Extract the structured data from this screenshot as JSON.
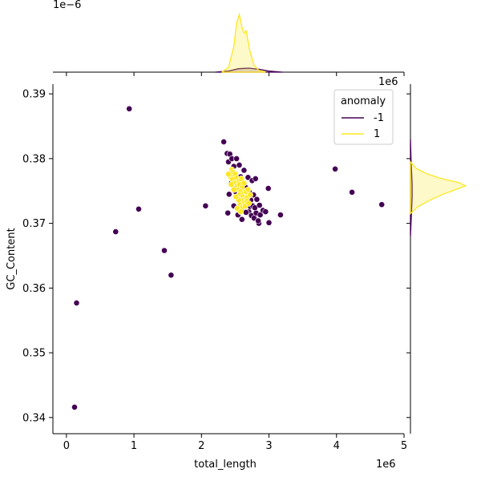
{
  "chart_data": {
    "type": "scatter",
    "title": "",
    "xlabel": "total_length",
    "ylabel": "GC_Content",
    "x_offset_label": "1e6",
    "y_offset_label_right": "1e6",
    "top_offset_label": "1e−6",
    "xlim": [
      -0.2,
      5.0
    ],
    "ylim": [
      0.3375,
      0.3915
    ],
    "xticks": [
      "0",
      "1",
      "2",
      "3",
      "4",
      "5"
    ],
    "yticks": [
      "0.34",
      "0.35",
      "0.36",
      "0.37",
      "0.38",
      "0.39"
    ],
    "grid": false,
    "legend": {
      "title": "anomaly",
      "placement": "top-right",
      "entries": [
        {
          "label": "-1",
          "color": "#440154"
        },
        {
          "label": "1",
          "color": "#fde725"
        }
      ]
    },
    "series": [
      {
        "name": "-1",
        "color": "#440154",
        "points": [
          [
            0.93,
            0.3877
          ],
          [
            1.07,
            0.3722
          ],
          [
            0.73,
            0.3687
          ],
          [
            1.45,
            0.3658
          ],
          [
            1.55,
            0.362
          ],
          [
            0.15,
            0.3577
          ],
          [
            0.12,
            0.3416
          ],
          [
            2.06,
            0.3727
          ],
          [
            3.98,
            0.3784
          ],
          [
            4.23,
            0.3748
          ],
          [
            4.67,
            0.3729
          ],
          [
            2.99,
            0.3754
          ],
          [
            3.17,
            0.3713
          ],
          [
            3.0,
            0.3701
          ],
          [
            2.85,
            0.37
          ],
          [
            2.33,
            0.3826
          ],
          [
            2.38,
            0.3808
          ],
          [
            2.42,
            0.3807
          ],
          [
            2.4,
            0.3795
          ],
          [
            2.45,
            0.38
          ],
          [
            2.48,
            0.3788
          ],
          [
            2.44,
            0.3762
          ],
          [
            2.41,
            0.3745
          ],
          [
            2.39,
            0.3716
          ],
          [
            2.48,
            0.3727
          ],
          [
            2.54,
            0.3713
          ],
          [
            2.62,
            0.372
          ],
          [
            2.67,
            0.3732
          ],
          [
            2.7,
            0.3718
          ],
          [
            2.74,
            0.3712
          ],
          [
            2.78,
            0.3708
          ],
          [
            2.81,
            0.3716
          ],
          [
            2.84,
            0.3704
          ],
          [
            2.87,
            0.3713
          ],
          [
            2.91,
            0.372
          ],
          [
            2.95,
            0.3718
          ],
          [
            2.6,
            0.3706
          ],
          [
            2.72,
            0.3726
          ],
          [
            2.56,
            0.379
          ],
          [
            2.63,
            0.3782
          ],
          [
            2.69,
            0.3771
          ],
          [
            2.75,
            0.3766
          ],
          [
            2.8,
            0.3769
          ],
          [
            2.52,
            0.38
          ],
          [
            2.58,
            0.3772
          ],
          [
            2.65,
            0.3756
          ],
          [
            2.71,
            0.3748
          ],
          [
            2.77,
            0.3744
          ],
          [
            2.82,
            0.3737
          ],
          [
            2.76,
            0.3727
          ],
          [
            2.68,
            0.3741
          ],
          [
            2.6,
            0.3752
          ],
          [
            2.5,
            0.376
          ],
          [
            2.46,
            0.3773
          ],
          [
            2.57,
            0.3743
          ],
          [
            2.64,
            0.3734
          ],
          [
            2.73,
            0.3736
          ],
          [
            2.79,
            0.3724
          ],
          [
            2.86,
            0.3728
          ],
          [
            2.66,
            0.3717
          ],
          [
            2.62,
            0.3728
          ],
          [
            2.55,
            0.3737
          ],
          [
            2.51,
            0.3748
          ]
        ]
      },
      {
        "name": "1",
        "color": "#fde725",
        "points": [
          [
            2.45,
            0.3783
          ],
          [
            2.47,
            0.3779
          ],
          [
            2.5,
            0.3776
          ],
          [
            2.43,
            0.3772
          ],
          [
            2.46,
            0.3768
          ],
          [
            2.52,
            0.377
          ],
          [
            2.55,
            0.3765
          ],
          [
            2.49,
            0.3762
          ],
          [
            2.53,
            0.3758
          ],
          [
            2.57,
            0.376
          ],
          [
            2.6,
            0.3755
          ],
          [
            2.54,
            0.3752
          ],
          [
            2.58,
            0.3749
          ],
          [
            2.62,
            0.3746
          ],
          [
            2.66,
            0.3749
          ],
          [
            2.56,
            0.3744
          ],
          [
            2.61,
            0.3741
          ],
          [
            2.64,
            0.3737
          ],
          [
            2.68,
            0.374
          ],
          [
            2.59,
            0.3735
          ],
          [
            2.63,
            0.3731
          ],
          [
            2.67,
            0.3734
          ],
          [
            2.57,
            0.3728
          ],
          [
            2.61,
            0.3725
          ],
          [
            2.65,
            0.3727
          ],
          [
            2.7,
            0.3731
          ],
          [
            2.55,
            0.3736
          ],
          [
            2.48,
            0.3752
          ],
          [
            2.51,
            0.3741
          ],
          [
            2.44,
            0.376
          ],
          [
            2.4,
            0.3776
          ],
          [
            2.59,
            0.3769
          ],
          [
            2.63,
            0.3762
          ],
          [
            2.69,
            0.3752
          ],
          [
            2.72,
            0.3744
          ],
          [
            2.53,
            0.3723
          ],
          [
            2.58,
            0.3718
          ]
        ]
      }
    ],
    "marginal_x_density": {
      "series": [
        {
          "name": "-1",
          "color": "#440154",
          "x": [
            2.2,
            2.4,
            2.55,
            2.7,
            2.85,
            3.0,
            3.2
          ],
          "y": [
            0,
            0.02,
            0.06,
            0.07,
            0.05,
            0.02,
            0
          ]
        },
        {
          "name": "1",
          "color": "#fde725",
          "x": [
            2.3,
            2.4,
            2.48,
            2.52,
            2.56,
            2.6,
            2.63,
            2.66,
            2.72,
            2.78,
            2.85,
            2.95
          ],
          "y": [
            0,
            0.08,
            0.45,
            0.85,
            1.0,
            0.78,
            0.68,
            0.72,
            0.35,
            0.12,
            0.03,
            0
          ]
        }
      ]
    },
    "marginal_y_density": {
      "series": [
        {
          "name": "-1",
          "color": "#440154",
          "y": [
            0.368,
            0.37,
            0.372,
            0.374,
            0.376,
            0.378,
            0.38,
            0.383
          ],
          "x": [
            0,
            0.01,
            0.02,
            0.03,
            0.03,
            0.02,
            0.01,
            0
          ]
        },
        {
          "name": "1",
          "color": "#fde725",
          "y": [
            0.3715,
            0.3725,
            0.3735,
            0.3745,
            0.3752,
            0.3758,
            0.3763,
            0.377,
            0.3777,
            0.3785,
            0.3795
          ],
          "x": [
            0,
            0.12,
            0.33,
            0.58,
            0.8,
            0.98,
            0.86,
            0.52,
            0.28,
            0.1,
            0
          ]
        }
      ]
    }
  }
}
